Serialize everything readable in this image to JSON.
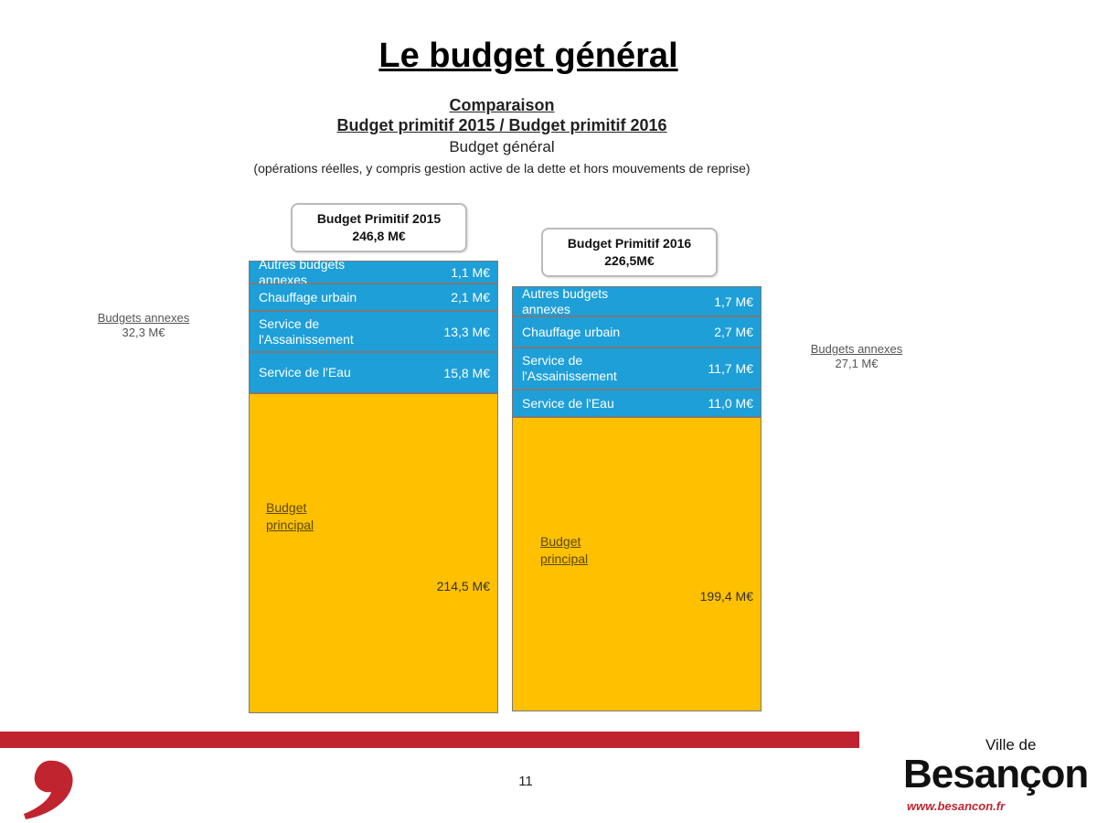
{
  "title": "Le budget général",
  "heading": {
    "line1": "Comparaison",
    "line2": "Budget primitif 2015 / Budget primitif 2016",
    "line3": "Budget général",
    "line4": "(opérations réelles, y compris gestion active de la dette et hors mouvements de reprise)"
  },
  "columns": [
    {
      "label": "Budget Primitif 2015",
      "total": "246,8 M€",
      "segments": [
        {
          "name": "Autres budgets annexes",
          "value": "1,1 M€"
        },
        {
          "name": "Chauffage urbain",
          "value": "2,1 M€"
        },
        {
          "name": "Service de l'Assainissement",
          "value": "13,3 M€"
        },
        {
          "name": "Service de l'Eau",
          "value": "15,8 M€"
        }
      ],
      "principal": {
        "name": "Budget principal",
        "value": "214,5 M€"
      },
      "annexes": {
        "name": "Budgets annexes",
        "value": "32,3 M€"
      }
    },
    {
      "label": "Budget Primitif 2016",
      "total": "226,5M€",
      "segments": [
        {
          "name": "Autres budgets annexes",
          "value": "1,7 M€"
        },
        {
          "name": "Chauffage urbain",
          "value": "2,7 M€"
        },
        {
          "name": "Service de l'Assainissement",
          "value": "11,7 M€"
        },
        {
          "name": "Service de l'Eau",
          "value": "11,0 M€"
        }
      ],
      "principal": {
        "name": "Budget principal",
        "value": "199,4 M€"
      },
      "annexes": {
        "name": "Budgets annexes",
        "value": "27,1 M€"
      }
    }
  ],
  "page_number": "11",
  "logo": {
    "line1": "Ville de",
    "line2": "Besançon",
    "url": "www.besancon.fr"
  }
}
